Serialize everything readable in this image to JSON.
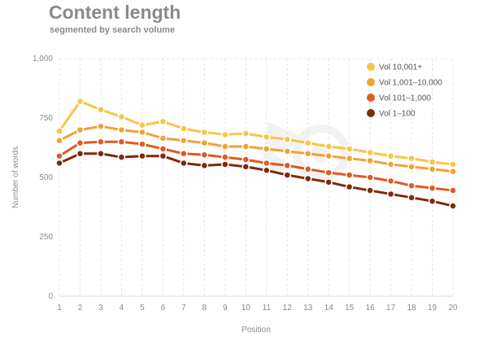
{
  "chart_data": {
    "type": "line",
    "title": "Content length",
    "subtitle": "segmented by search volume",
    "xlabel": "Position",
    "ylabel": "Number of words",
    "x": [
      1,
      2,
      3,
      4,
      5,
      6,
      7,
      8,
      9,
      10,
      11,
      12,
      13,
      14,
      15,
      16,
      17,
      18,
      19,
      20
    ],
    "ylim": [
      0,
      1000
    ],
    "yticks": [
      0,
      250,
      500,
      750,
      1000
    ],
    "ytick_labels": [
      "0",
      "250",
      "500",
      "750",
      "1,000"
    ],
    "grid": "vertical dashed",
    "legend_position": "top-right",
    "series": [
      {
        "name": "Vol 10,001+",
        "color": "#f7c548",
        "values": [
          695,
          820,
          785,
          755,
          720,
          735,
          705,
          690,
          680,
          685,
          670,
          660,
          645,
          630,
          620,
          605,
          590,
          580,
          565,
          555
        ]
      },
      {
        "name": "Vol 1,001–10,000",
        "color": "#f1a234",
        "values": [
          655,
          700,
          715,
          700,
          690,
          665,
          655,
          645,
          630,
          630,
          620,
          610,
          600,
          590,
          580,
          570,
          555,
          545,
          535,
          525
        ]
      },
      {
        "name": "Vol 101–1,000",
        "color": "#dc5b22",
        "values": [
          590,
          645,
          650,
          650,
          640,
          620,
          600,
          595,
          585,
          575,
          560,
          550,
          535,
          520,
          510,
          500,
          485,
          465,
          455,
          445
        ]
      },
      {
        "name": "Vol 1–100",
        "color": "#7e2a0c",
        "values": [
          560,
          600,
          600,
          585,
          590,
          590,
          560,
          550,
          555,
          545,
          530,
          510,
          495,
          480,
          460,
          445,
          430,
          415,
          400,
          380
        ]
      }
    ]
  }
}
